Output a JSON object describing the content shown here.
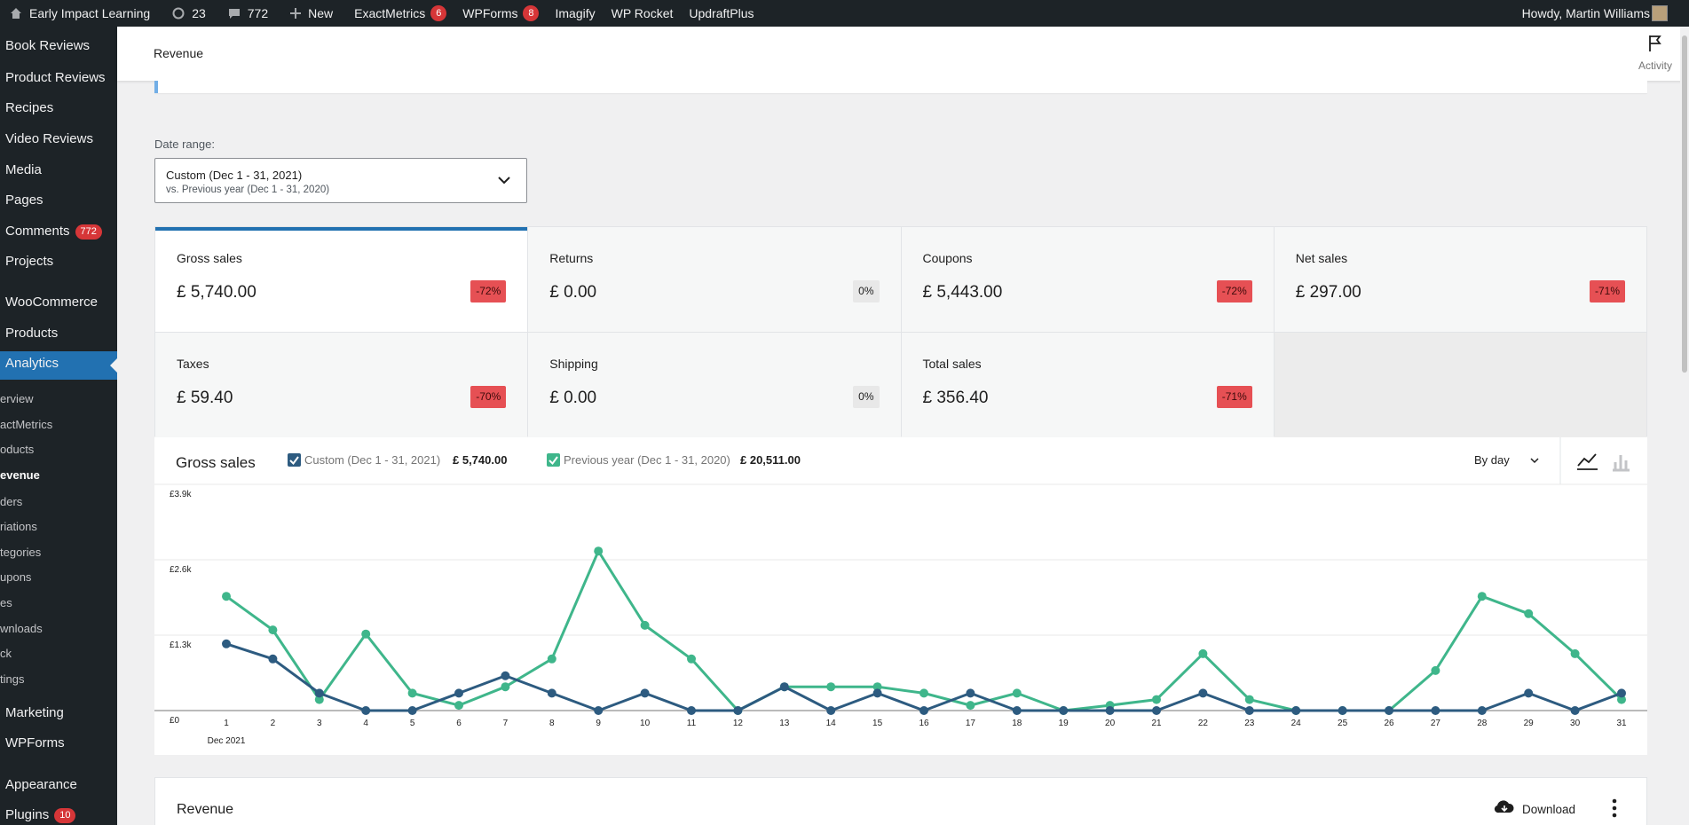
{
  "admin_bar": {
    "site": "Early Impact Learning",
    "updates": "23",
    "comments": "772",
    "new": "New",
    "plugins": [
      {
        "name": "ExactMetrics",
        "badge": "6"
      },
      {
        "name": "WPForms",
        "badge": "8"
      },
      {
        "name": "Imagify"
      },
      {
        "name": "WP Rocket"
      },
      {
        "name": "UpdraftPlus"
      }
    ],
    "greeting": "Howdy, Martin Williams"
  },
  "sidebar": {
    "menu": [
      {
        "label": "Book Reviews"
      },
      {
        "label": "Product Reviews"
      },
      {
        "label": "Recipes"
      },
      {
        "label": "Video Reviews"
      },
      {
        "label": "Media"
      },
      {
        "label": "Pages"
      },
      {
        "label": "Comments",
        "badge": "772"
      },
      {
        "label": "Projects"
      },
      {
        "label": "WooCommerce"
      },
      {
        "label": "Products"
      },
      {
        "label": "Analytics",
        "active": true
      }
    ],
    "submenu": [
      {
        "label": "erview"
      },
      {
        "label": "actMetrics"
      },
      {
        "label": "oducts"
      },
      {
        "label": "evenue",
        "current": true
      },
      {
        "label": "ders"
      },
      {
        "label": "riations"
      },
      {
        "label": "tegories"
      },
      {
        "label": "upons"
      },
      {
        "label": "es"
      },
      {
        "label": "wnloads"
      },
      {
        "label": "ck"
      },
      {
        "label": "tings"
      }
    ],
    "menu_lower": [
      {
        "label": "Marketing"
      },
      {
        "label": "WPForms"
      },
      {
        "label": "Appearance"
      },
      {
        "label": "Plugins",
        "badge": "10"
      }
    ]
  },
  "header": {
    "title": "Revenue",
    "activity": "Activity"
  },
  "date_range": {
    "label": "Date range:",
    "primary": "Custom (Dec 1 - 31, 2021)",
    "compare": "vs. Previous year (Dec 1 - 31, 2020)"
  },
  "summary": [
    {
      "label": "Gross sales",
      "value": "£ 5,740.00",
      "delta": "-72%",
      "selected": true
    },
    {
      "label": "Returns",
      "value": "£ 0.00",
      "delta": "0%"
    },
    {
      "label": "Coupons",
      "value": "£ 5,443.00",
      "delta": "-72%"
    },
    {
      "label": "Net sales",
      "value": "£ 297.00",
      "delta": "-71%"
    },
    {
      "label": "Taxes",
      "value": "£ 59.40",
      "delta": "-70%"
    },
    {
      "label": "Shipping",
      "value": "£ 0.00",
      "delta": "0%"
    },
    {
      "label": "Total sales",
      "value": "£ 356.40",
      "delta": "-71%"
    }
  ],
  "chart_data": {
    "type": "line",
    "title": "Gross sales",
    "interval": "By day",
    "categories": [
      "1",
      "2",
      "3",
      "4",
      "5",
      "6",
      "7",
      "8",
      "9",
      "10",
      "11",
      "12",
      "13",
      "14",
      "15",
      "16",
      "17",
      "18",
      "19",
      "20",
      "21",
      "22",
      "23",
      "24",
      "25",
      "26",
      "27",
      "28",
      "29",
      "30",
      "31"
    ],
    "x_sublabel": "Dec 2021",
    "series": [
      {
        "name": "Custom (Dec 1 - 31, 2021)",
        "total": "£ 5,740.00",
        "color": "#2d5b80",
        "values": [
          1150,
          890,
          300,
          0,
          0,
          300,
          600,
          300,
          0,
          300,
          0,
          0,
          410,
          0,
          300,
          0,
          300,
          0,
          0,
          0,
          0,
          300,
          0,
          0,
          0,
          0,
          0,
          0,
          300,
          0,
          300
        ]
      },
      {
        "name": "Previous year (Dec 1 - 31, 2020)",
        "total": "£ 20,511.00",
        "color": "#3fb68b",
        "values": [
          1970,
          1390,
          190,
          1320,
          300,
          90,
          410,
          890,
          2750,
          1470,
          890,
          0,
          410,
          410,
          410,
          300,
          90,
          300,
          0,
          90,
          190,
          980,
          190,
          0,
          0,
          0,
          690,
          1970,
          1670,
          980,
          190
        ]
      }
    ],
    "ylim": [
      0,
      3900
    ],
    "yticks": [
      {
        "value": 0,
        "label": "£0"
      },
      {
        "value": 1300,
        "label": "£1.3k"
      },
      {
        "value": 2600,
        "label": "£2.6k"
      },
      {
        "value": 3900,
        "label": "£3.9k"
      }
    ],
    "grid": true
  },
  "table_panel": {
    "title": "Revenue",
    "download": "Download"
  }
}
